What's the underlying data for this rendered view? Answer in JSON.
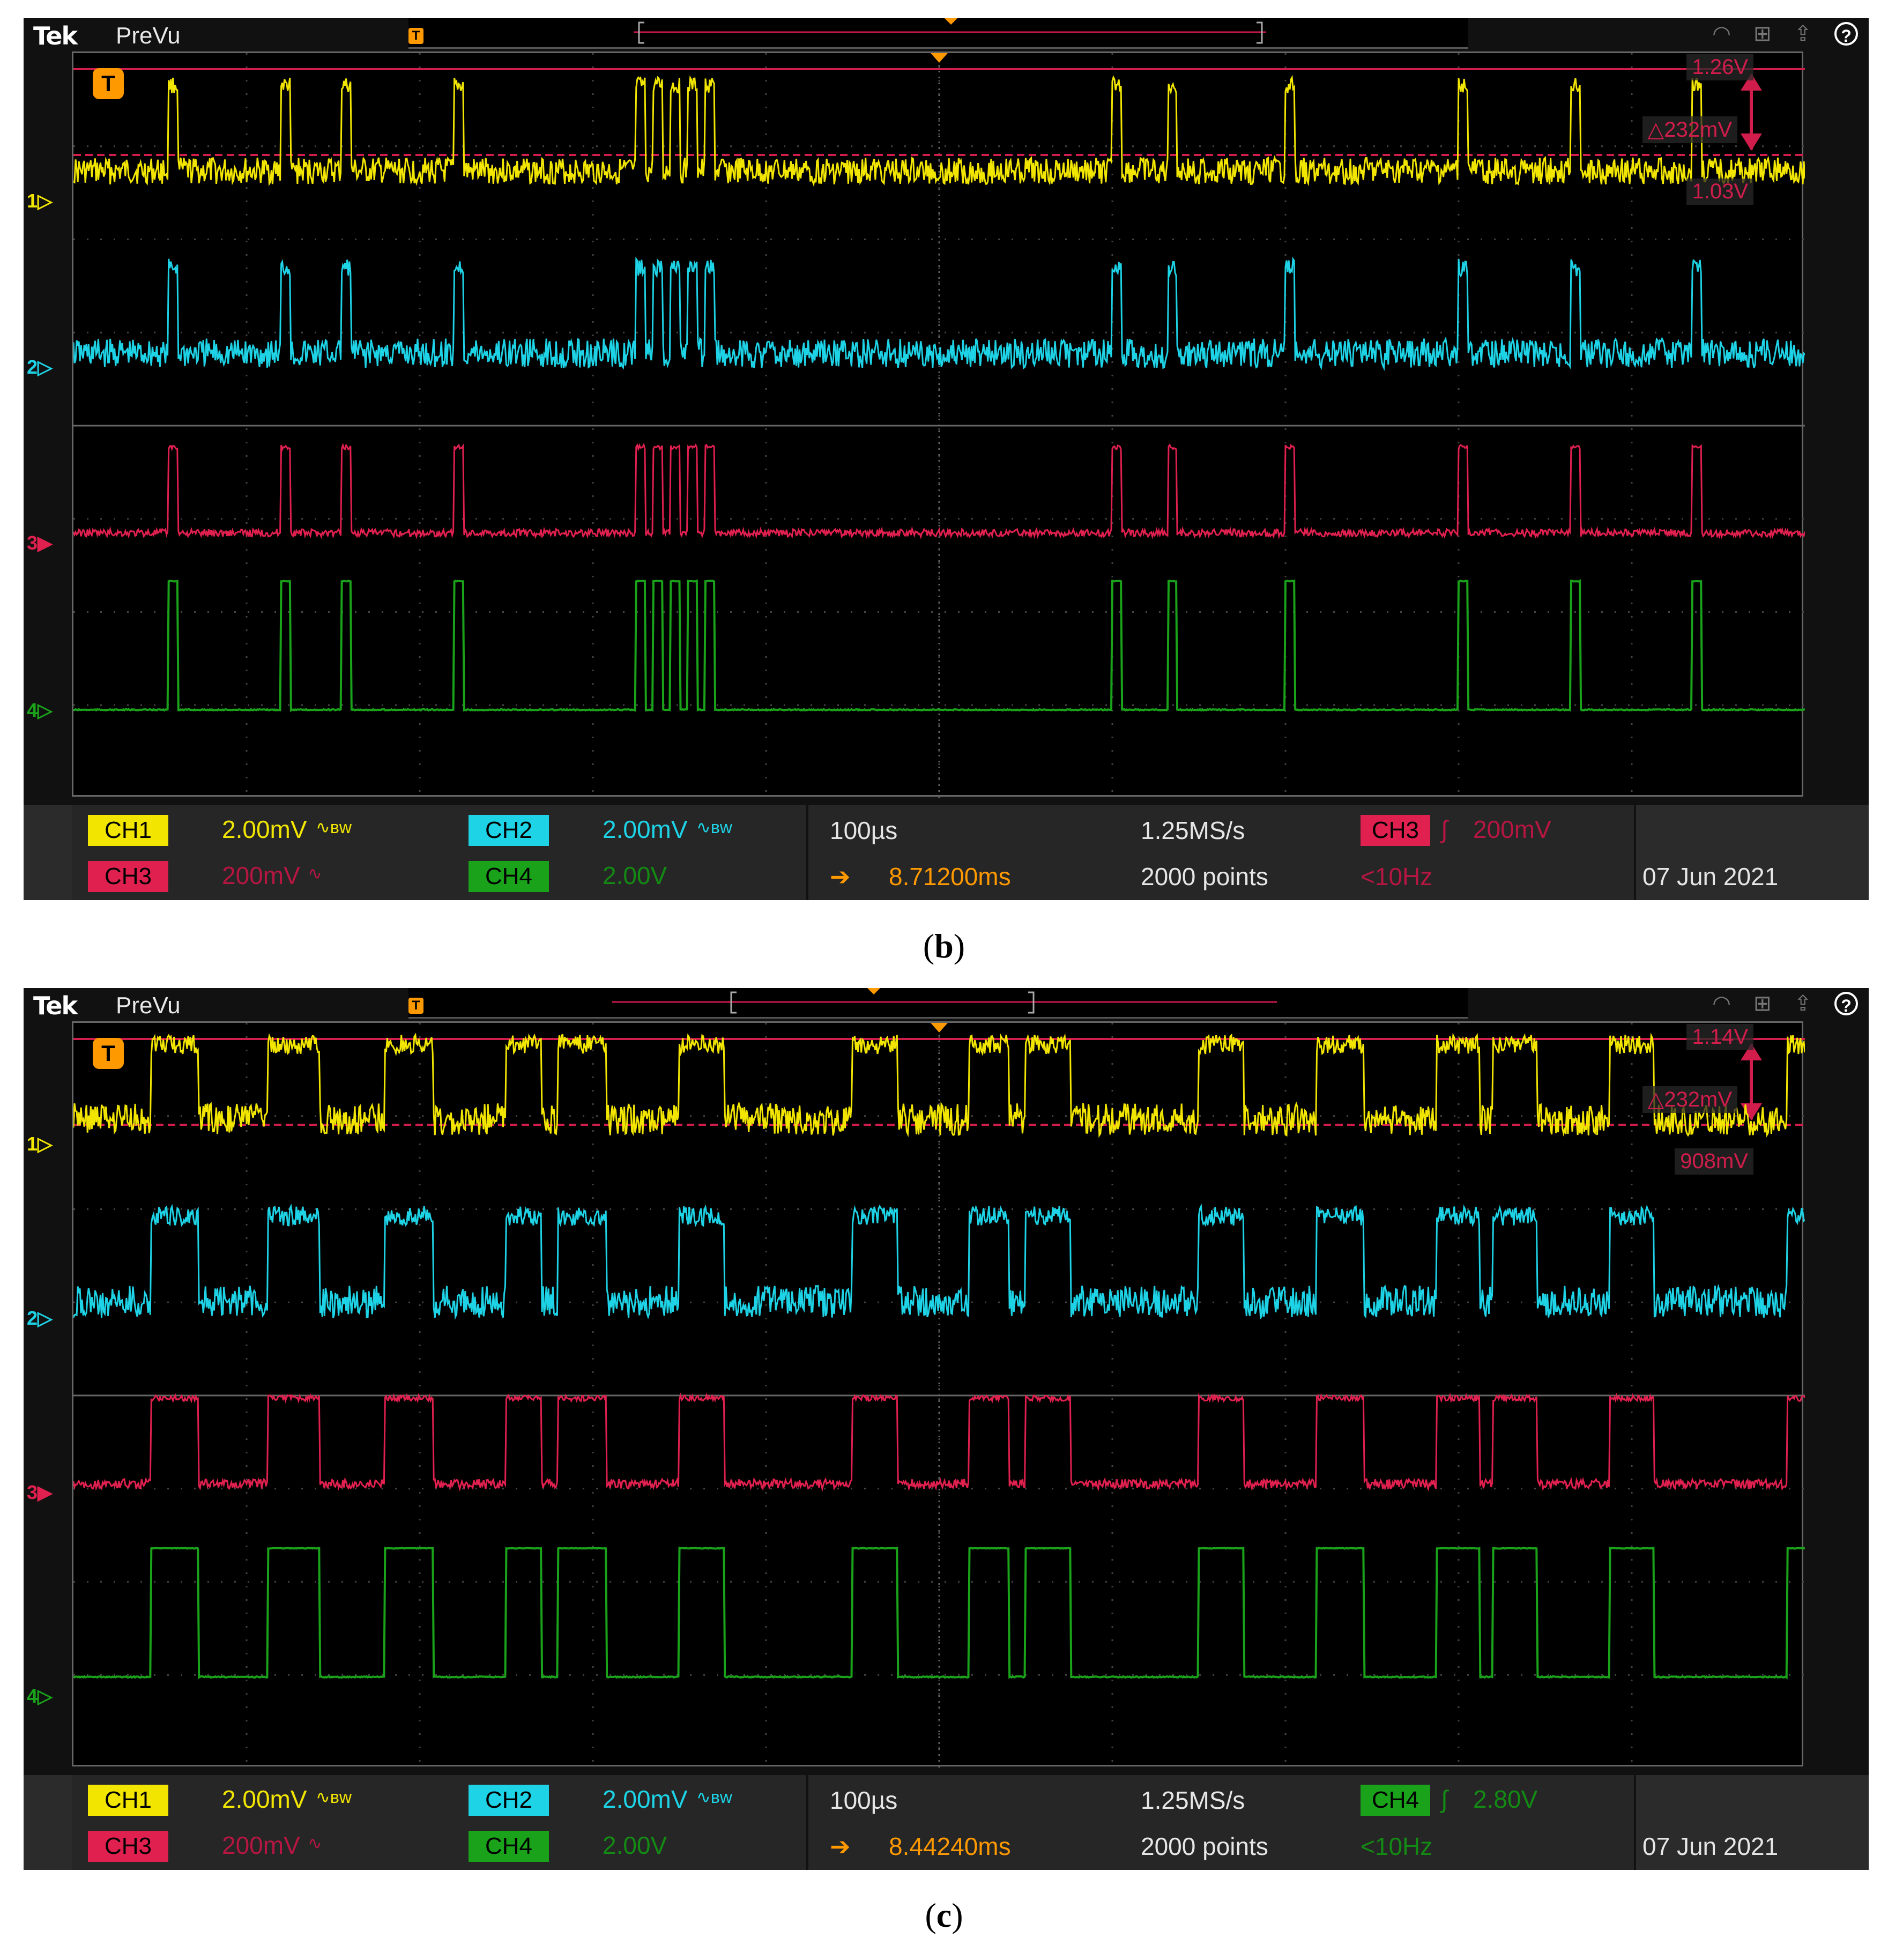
{
  "screens": [
    {
      "id": "b",
      "brand": "Tek",
      "mode": "PreVu",
      "caption_letter": "b",
      "trigger_badge": "T",
      "cursor": {
        "upper": "1.26V",
        "delta": "△232mV",
        "lower": "1.03V"
      },
      "channel_markers": [
        "1▷",
        "2▷",
        "3▶",
        "4▷"
      ],
      "channels": [
        {
          "label": "CH1",
          "scale": "2.00mV",
          "suffix": "∿ʙw"
        },
        {
          "label": "CH2",
          "scale": "2.00mV",
          "suffix": "∿ʙw"
        },
        {
          "label": "CH3",
          "scale": "200mV",
          "suffix": "∿"
        },
        {
          "label": "CH4",
          "scale": "2.00V",
          "suffix": ""
        }
      ],
      "horizontal": {
        "scale": "100µs",
        "sample_rate": "1.25MS/s",
        "position": "8.71200ms",
        "record": "2000 points"
      },
      "trigger": {
        "source": "CH3",
        "slope": "∫",
        "level": "200mV",
        "freq": "<10Hz"
      },
      "date": "07 Jun 2021"
    },
    {
      "id": "c",
      "brand": "Tek",
      "mode": "PreVu",
      "caption_letter": "c",
      "trigger_badge": "T",
      "cursor": {
        "upper": "1.14V",
        "delta": "△232mV",
        "lower": "908mV"
      },
      "channel_markers": [
        "1▷",
        "2▷",
        "3▶",
        "4▷"
      ],
      "channels": [
        {
          "label": "CH1",
          "scale": "2.00mV",
          "suffix": "∿ʙw"
        },
        {
          "label": "CH2",
          "scale": "2.00mV",
          "suffix": "∿ʙw"
        },
        {
          "label": "CH3",
          "scale": "200mV",
          "suffix": "∿"
        },
        {
          "label": "CH4",
          "scale": "2.00V",
          "suffix": ""
        }
      ],
      "horizontal": {
        "scale": "100µs",
        "sample_rate": "1.25MS/s",
        "position": "8.44240ms",
        "record": "2000 points"
      },
      "trigger": {
        "source": "CH4",
        "slope": "∫",
        "level": "2.80V",
        "freq": "<10Hz"
      },
      "date": "07 Jun 2021"
    }
  ],
  "colors": {
    "ch1": "#f2e600",
    "ch2": "#1ed3e6",
    "ch3": "#e0204f",
    "ch4": "#1aa31a",
    "trigger": "#ff9900",
    "cursor": "#d11d4c"
  },
  "icons": {
    "topbar": [
      "wifi-icon",
      "network-icon",
      "export-icon",
      "help-icon"
    ]
  }
}
